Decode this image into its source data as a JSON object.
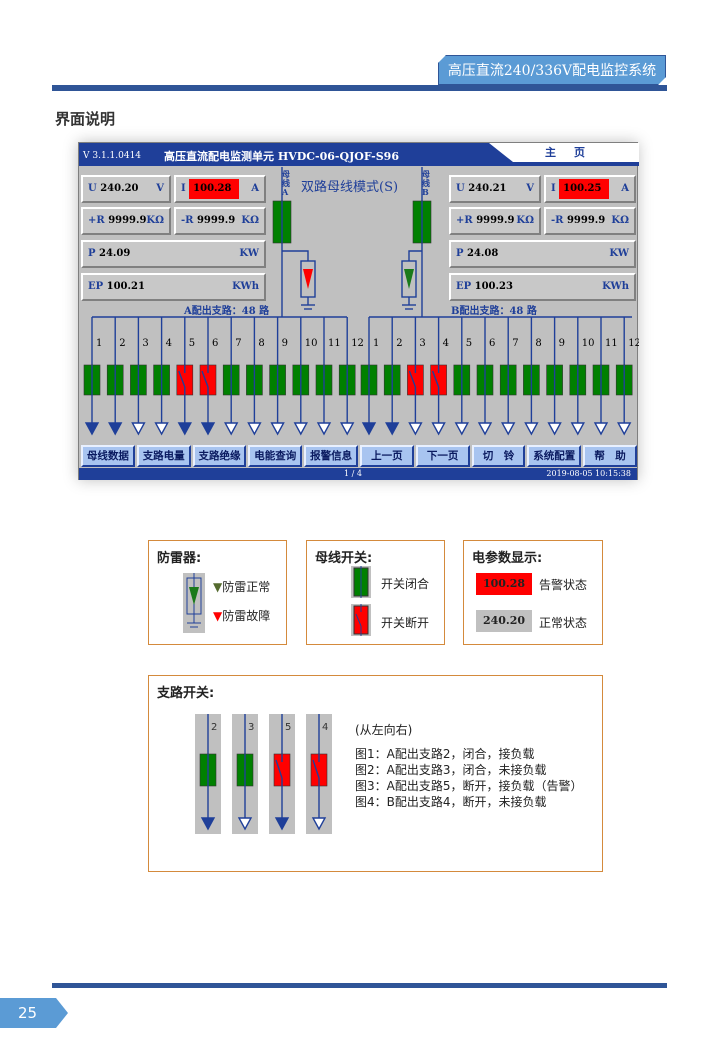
{
  "header": {
    "system_title": "高压直流240/336V配电监控系统",
    "section_title": "界面说明"
  },
  "screen": {
    "version": "V 3.1.1.0414",
    "title": "高压直流配电监测单元 HVDC-06-QJOF-S96",
    "home_tab": "主页",
    "mode": "双路母线模式(S)",
    "bus_a_label": "母线A",
    "bus_b_label": "母线B",
    "bus_a": {
      "U": "240.20",
      "U_unit": "V",
      "I": "100.28",
      "I_unit": "A",
      "R_pos": "9999.9",
      "R_neg": "9999.9",
      "R_unit": "KΩ",
      "P": "24.09",
      "P_unit": "KW",
      "EP": "100.21",
      "EP_unit": "KWh",
      "branches_label": "A配出支路：48 路",
      "surge": "fault",
      "I_alarm": true
    },
    "bus_b": {
      "U": "240.21",
      "U_unit": "V",
      "I": "100.25",
      "I_unit": "A",
      "R_pos": "9999.9",
      "R_neg": "9999.9",
      "R_unit": "KΩ",
      "P": "24.08",
      "P_unit": "KW",
      "EP": "100.23",
      "EP_unit": "KWh",
      "branches_label": "B配出支路：48 路",
      "surge": "normal",
      "I_alarm": true
    },
    "labels": {
      "U": "U",
      "I": "I",
      "R_pos": "+R",
      "R_neg": "-R",
      "P": "P",
      "EP": "EP"
    },
    "branches_a": {
      "numbers": [
        "1",
        "2",
        "3",
        "4",
        "5",
        "6",
        "7",
        "8",
        "9",
        "10",
        "11",
        "12"
      ],
      "closed": [
        true,
        true,
        true,
        true,
        false,
        false,
        true,
        true,
        true,
        true,
        true,
        true
      ],
      "loaded": [
        true,
        true,
        false,
        false,
        true,
        true,
        false,
        false,
        false,
        false,
        false,
        false
      ]
    },
    "branches_b": {
      "numbers": [
        "1",
        "2",
        "3",
        "4",
        "5",
        "6",
        "7",
        "8",
        "9",
        "10",
        "11",
        "12"
      ],
      "closed": [
        true,
        true,
        false,
        false,
        true,
        true,
        true,
        true,
        true,
        true,
        true,
        true
      ],
      "loaded": [
        true,
        true,
        false,
        false,
        false,
        false,
        false,
        false,
        false,
        false,
        false,
        false
      ]
    },
    "buttons": [
      "母线数据",
      "支路电量",
      "支路绝缘",
      "电能查询",
      "报警信息",
      "上一页",
      "下一页",
      "切　铃",
      "系统配置",
      "帮　助"
    ],
    "page": "1 / 4",
    "datetime": "2019-08-05 10:15:38",
    "colors": {
      "title_bar": "#1f3f99",
      "closed": "#008000",
      "open": "#ff0000",
      "panel": "#c0c0c0"
    }
  },
  "legend": {
    "surge": {
      "title": "防雷器:",
      "normal": "防雷正常",
      "fault": "防雷故障"
    },
    "bus_switch": {
      "title": "母线开关:",
      "closed": "开关闭合",
      "open": "开关断开"
    },
    "params": {
      "title": "电参数显示:",
      "alarm_value": "100.28",
      "alarm": "告警状态",
      "normal_value": "240.20",
      "normal": "正常状态"
    },
    "branch": {
      "title": "支路开关:",
      "examples": [
        {
          "n": "2",
          "closed": true,
          "loaded": true
        },
        {
          "n": "3",
          "closed": true,
          "loaded": false
        },
        {
          "n": "5",
          "closed": false,
          "loaded": true
        },
        {
          "n": "4",
          "closed": false,
          "loaded": false
        }
      ],
      "note": "(从左向右)",
      "lines": [
        "图1：A配出支路2，闭合，接负载",
        "图2：A配出支路3，闭合，未接负载",
        "图3：A配出支路5，断开，接负载（告警）",
        "图4：B配出支路4，断开，未接负载"
      ]
    }
  },
  "footer": {
    "page_number": "25"
  }
}
